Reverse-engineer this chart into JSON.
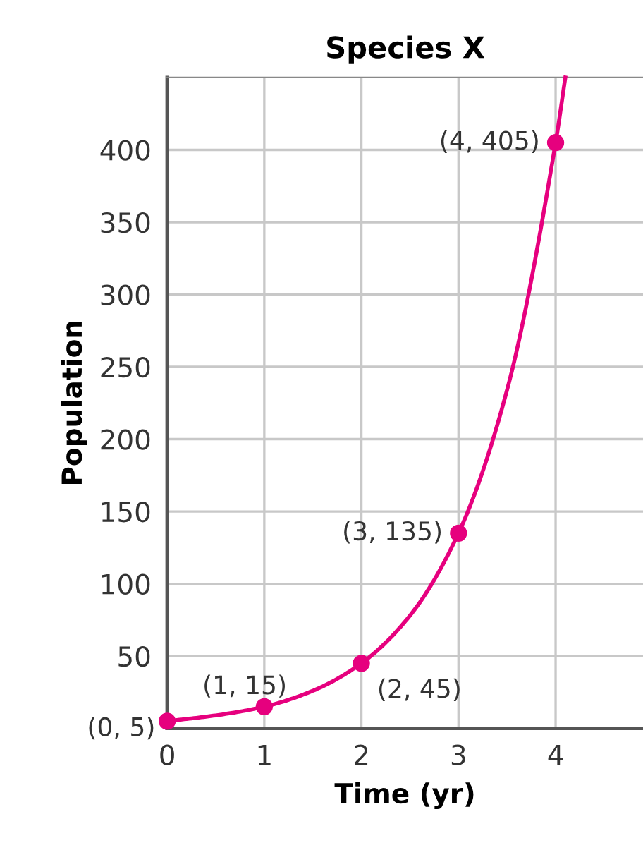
{
  "chart_data": {
    "type": "line",
    "title": "Species X",
    "xlabel": "Time (yr)",
    "ylabel": "Population",
    "xlim": [
      0,
      4.9
    ],
    "ylim": [
      0,
      450
    ],
    "xticks": [
      0,
      1,
      2,
      3,
      4
    ],
    "yticks": [
      50,
      100,
      150,
      200,
      250,
      300,
      350,
      400
    ],
    "grid": true,
    "series": [
      {
        "color": "#e6007e",
        "x": [
          0,
          0.5,
          1,
          1.5,
          2,
          2.5,
          3,
          3.5,
          4,
          4.1
        ],
        "values": [
          5,
          9,
          15,
          26,
          45,
          78,
          135,
          234,
          405,
          450
        ]
      },
      {
        "type": "scatter",
        "color": "#e6007e",
        "marker": "circle",
        "x": [
          0,
          1,
          2,
          3,
          4
        ],
        "values": [
          5,
          15,
          45,
          135,
          405
        ]
      }
    ],
    "annotations": [
      {
        "text": "(0, 5)",
        "x": 0,
        "y": 5
      },
      {
        "text": "(1, 15)",
        "x": 1,
        "y": 15
      },
      {
        "text": "(2, 45)",
        "x": 2,
        "y": 45
      },
      {
        "text": "(3, 135)",
        "x": 3,
        "y": 135
      },
      {
        "text": "(4, 405)",
        "x": 4,
        "y": 405
      }
    ]
  }
}
